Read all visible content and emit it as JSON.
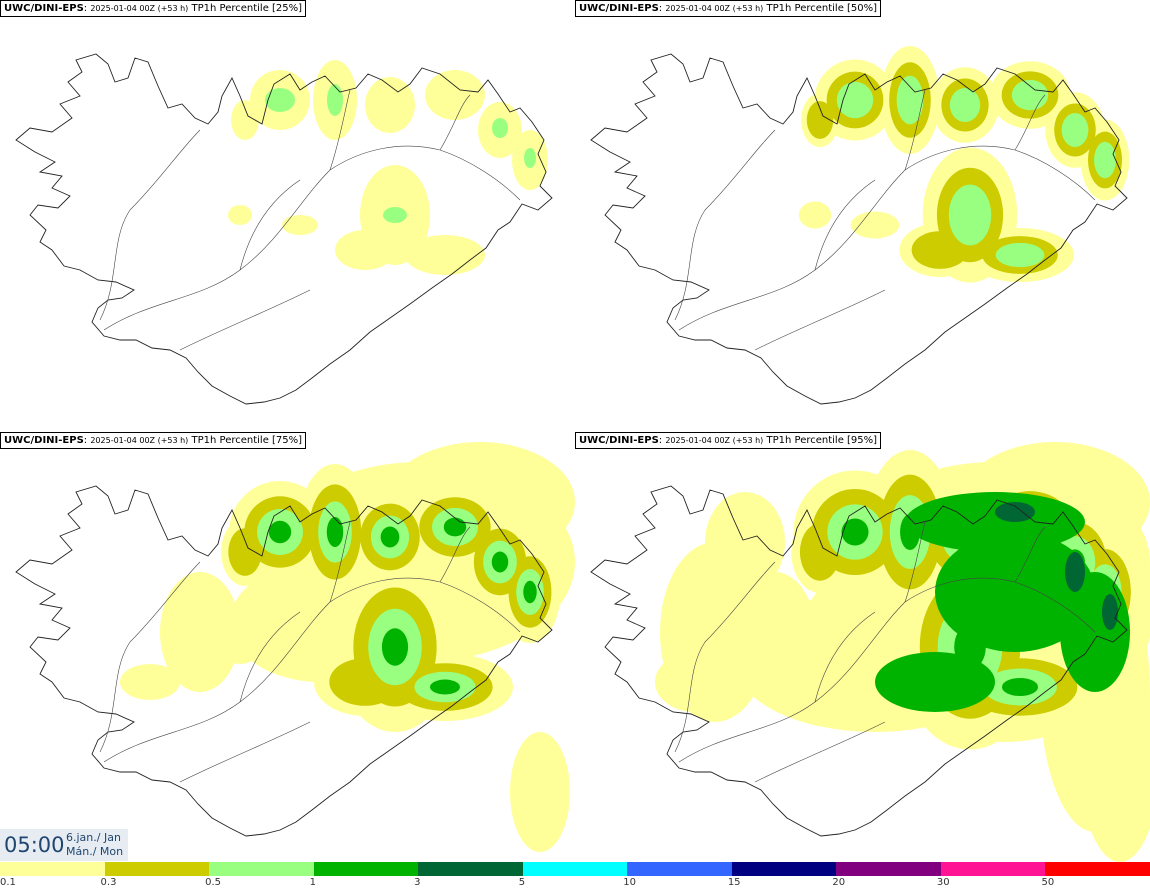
{
  "panels": [
    {
      "model": "UWC/DINI-EPS",
      "run": "2025-01-04 00Z (+53 h)",
      "field": "TP1h Percentile [25%]",
      "level": 1
    },
    {
      "model": "UWC/DINI-EPS",
      "run": "2025-01-04 00Z (+53 h)",
      "field": "TP1h Percentile [50%]",
      "level": 2
    },
    {
      "model": "UWC/DINI-EPS",
      "run": "2025-01-04 00Z (+53 h)",
      "field": "TP1h Percentile [75%]",
      "level": 3
    },
    {
      "model": "UWC/DINI-EPS",
      "run": "2025-01-04 00Z (+53 h)",
      "field": "TP1h Percentile [95%]",
      "level": 4
    }
  ],
  "valid_time": {
    "time": "05:00",
    "date_line1": "6.jan./ Jan",
    "date_line2": "Mán./ Mon"
  },
  "legend": {
    "colors": [
      "#ffff99",
      "#cccc00",
      "#99ff80",
      "#00b300",
      "#006633",
      "#00ffff",
      "#3366ff",
      "#000080",
      "#800080",
      "#ff1493",
      "#ff0000"
    ],
    "ticks": [
      "0.1",
      "0.3",
      "0.5",
      "1",
      "3",
      "5",
      "10",
      "15",
      "20",
      "30",
      "50"
    ]
  },
  "map": {
    "coast_color": "#222222",
    "road_color": "#444444",
    "background": "#ffffff"
  }
}
